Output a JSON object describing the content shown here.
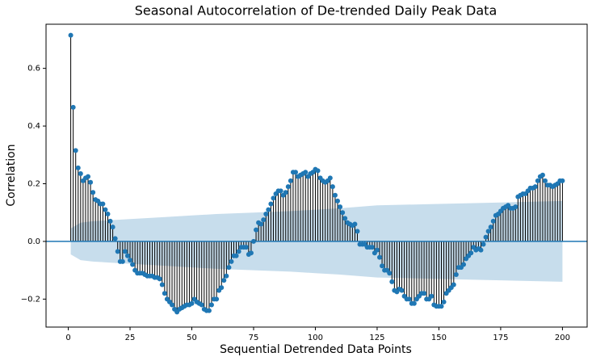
{
  "chart_data": {
    "type": "stem",
    "title": "Seasonal Autocorrelation of De-trended Daily Peak Data",
    "x_label": "Sequential Detrended Data Points",
    "y_label": "Correlation",
    "color": "#1f77b4",
    "stem_color": "#000000",
    "band_color": "#1f77b4",
    "x": [
      1,
      2,
      3,
      4,
      5,
      6,
      7,
      8,
      9,
      10,
      11,
      12,
      13,
      14,
      15,
      16,
      17,
      18,
      19,
      20,
      21,
      22,
      23,
      24,
      25,
      26,
      27,
      28,
      29,
      30,
      31,
      32,
      33,
      34,
      35,
      36,
      37,
      38,
      39,
      40,
      41,
      42,
      43,
      44,
      45,
      46,
      47,
      48,
      49,
      50,
      51,
      52,
      53,
      54,
      55,
      56,
      57,
      58,
      59,
      60,
      61,
      62,
      63,
      64,
      65,
      66,
      67,
      68,
      69,
      70,
      71,
      72,
      73,
      74,
      75,
      76,
      77,
      78,
      79,
      80,
      81,
      82,
      83,
      84,
      85,
      86,
      87,
      88,
      89,
      90,
      91,
      92,
      93,
      94,
      95,
      96,
      97,
      98,
      99,
      100,
      101,
      102,
      103,
      104,
      105,
      106,
      107,
      108,
      109,
      110,
      111,
      112,
      113,
      114,
      115,
      116,
      117,
      118,
      119,
      120,
      121,
      122,
      123,
      124,
      125,
      126,
      127,
      128,
      129,
      130,
      131,
      132,
      133,
      134,
      135,
      136,
      137,
      138,
      139,
      140,
      141,
      142,
      143,
      144,
      145,
      146,
      147,
      148,
      149,
      150,
      151,
      152,
      153,
      154,
      155,
      156,
      157,
      158,
      159,
      160,
      161,
      162,
      163,
      164,
      165,
      166,
      167,
      168,
      169,
      170,
      171,
      172,
      173,
      174,
      175,
      176,
      177,
      178,
      179,
      180,
      181,
      182,
      183,
      184,
      185,
      186,
      187,
      188,
      189,
      190,
      191,
      192,
      193,
      194,
      195,
      196,
      197,
      198,
      199,
      200
    ],
    "values": [
      0.715,
      0.465,
      0.315,
      0.255,
      0.235,
      0.21,
      0.22,
      0.225,
      0.205,
      0.17,
      0.145,
      0.14,
      0.13,
      0.13,
      0.11,
      0.095,
      0.07,
      0.05,
      0.01,
      -0.035,
      -0.07,
      -0.07,
      -0.035,
      -0.05,
      -0.065,
      -0.08,
      -0.1,
      -0.11,
      -0.11,
      -0.11,
      -0.115,
      -0.12,
      -0.12,
      -0.12,
      -0.125,
      -0.125,
      -0.13,
      -0.15,
      -0.18,
      -0.2,
      -0.21,
      -0.22,
      -0.235,
      -0.245,
      -0.235,
      -0.23,
      -0.225,
      -0.22,
      -0.22,
      -0.215,
      -0.2,
      -0.21,
      -0.215,
      -0.22,
      -0.235,
      -0.24,
      -0.24,
      -0.22,
      -0.2,
      -0.2,
      -0.17,
      -0.16,
      -0.135,
      -0.12,
      -0.09,
      -0.07,
      -0.05,
      -0.05,
      -0.035,
      -0.02,
      -0.02,
      -0.02,
      -0.045,
      -0.04,
      0.0,
      0.04,
      0.065,
      0.06,
      0.075,
      0.095,
      0.11,
      0.13,
      0.15,
      0.165,
      0.175,
      0.175,
      0.16,
      0.17,
      0.19,
      0.21,
      0.24,
      0.24,
      0.225,
      0.23,
      0.235,
      0.24,
      0.225,
      0.235,
      0.24,
      0.25,
      0.245,
      0.22,
      0.21,
      0.205,
      0.21,
      0.22,
      0.19,
      0.16,
      0.14,
      0.12,
      0.1,
      0.08,
      0.065,
      0.06,
      0.055,
      0.06,
      0.035,
      -0.01,
      -0.01,
      -0.01,
      -0.02,
      -0.02,
      -0.02,
      -0.04,
      -0.03,
      -0.055,
      -0.085,
      -0.1,
      -0.1,
      -0.11,
      -0.14,
      -0.17,
      -0.175,
      -0.165,
      -0.17,
      -0.19,
      -0.2,
      -0.2,
      -0.215,
      -0.215,
      -0.2,
      -0.19,
      -0.18,
      -0.18,
      -0.2,
      -0.2,
      -0.19,
      -0.22,
      -0.225,
      -0.225,
      -0.225,
      -0.21,
      -0.18,
      -0.17,
      -0.16,
      -0.15,
      -0.115,
      -0.09,
      -0.09,
      -0.08,
      -0.06,
      -0.05,
      -0.04,
      -0.02,
      -0.03,
      -0.025,
      -0.03,
      -0.01,
      0.015,
      0.035,
      0.05,
      0.07,
      0.09,
      0.095,
      0.105,
      0.115,
      0.12,
      0.125,
      0.115,
      0.115,
      0.12,
      0.155,
      0.16,
      0.165,
      0.165,
      0.175,
      0.185,
      0.185,
      0.19,
      0.21,
      0.225,
      0.23,
      0.21,
      0.195,
      0.195,
      0.19,
      0.195,
      0.2,
      0.21,
      0.21
    ],
    "confidence_band": {
      "x": [
        1,
        5,
        10,
        20,
        30,
        40,
        50,
        60,
        75,
        90,
        100,
        110,
        125,
        150,
        175,
        200
      ],
      "upper": [
        0.045,
        0.065,
        0.07,
        0.075,
        0.08,
        0.085,
        0.09,
        0.095,
        0.1,
        0.105,
        0.11,
        0.115,
        0.125,
        0.13,
        0.135,
        0.14
      ],
      "lower": [
        -0.045,
        -0.065,
        -0.07,
        -0.075,
        -0.08,
        -0.085,
        -0.09,
        -0.095,
        -0.1,
        -0.105,
        -0.11,
        -0.115,
        -0.125,
        -0.13,
        -0.135,
        -0.14
      ]
    },
    "xlim": [
      -9,
      210
    ],
    "ylim": [
      -0.297,
      0.753
    ],
    "xticks": [
      0,
      25,
      50,
      75,
      100,
      125,
      150,
      175,
      200
    ],
    "yticks": [
      {
        "value": -0.2,
        "label": "−0.2"
      },
      {
        "value": 0,
        "label": "0.0"
      },
      {
        "value": 0.2,
        "label": "0.2"
      },
      {
        "value": 0.4,
        "label": "0.4"
      },
      {
        "value": 0.6,
        "label": "0.6"
      }
    ],
    "grid": false
  }
}
